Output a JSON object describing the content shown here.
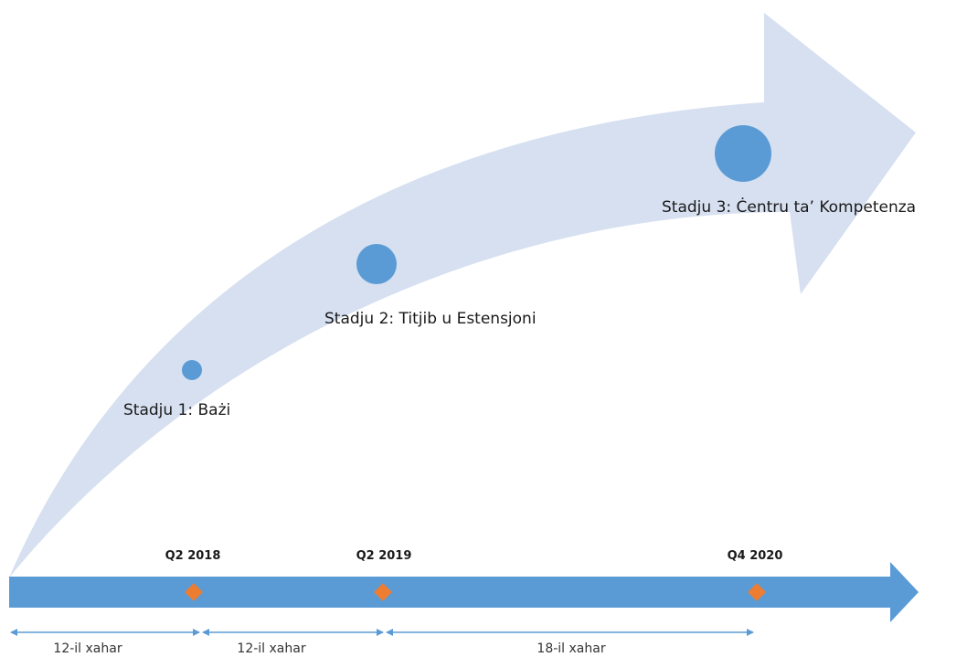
{
  "colors": {
    "growth_arrow": "#d6e0f0",
    "circle": "#5b9bd5",
    "timeline": "#5b9bd5",
    "milestone_marker": "#ed7d31",
    "duration_arrow": "#5b9bd5",
    "text": "#1a1a1a"
  },
  "stages": [
    {
      "label": "Stadju 1: Bażi"
    },
    {
      "label": "Stadju 2: Titjib u Estensjoni"
    },
    {
      "label": "Stadju 3: Ċentru ta’ Kompetenza"
    }
  ],
  "milestones": [
    {
      "label": "Q2 2018"
    },
    {
      "label": "Q2 2019"
    },
    {
      "label": "Q4 2020"
    }
  ],
  "durations": [
    {
      "label": "12-il xahar"
    },
    {
      "label": "12-il xahar"
    },
    {
      "label": "18-il xahar"
    }
  ]
}
